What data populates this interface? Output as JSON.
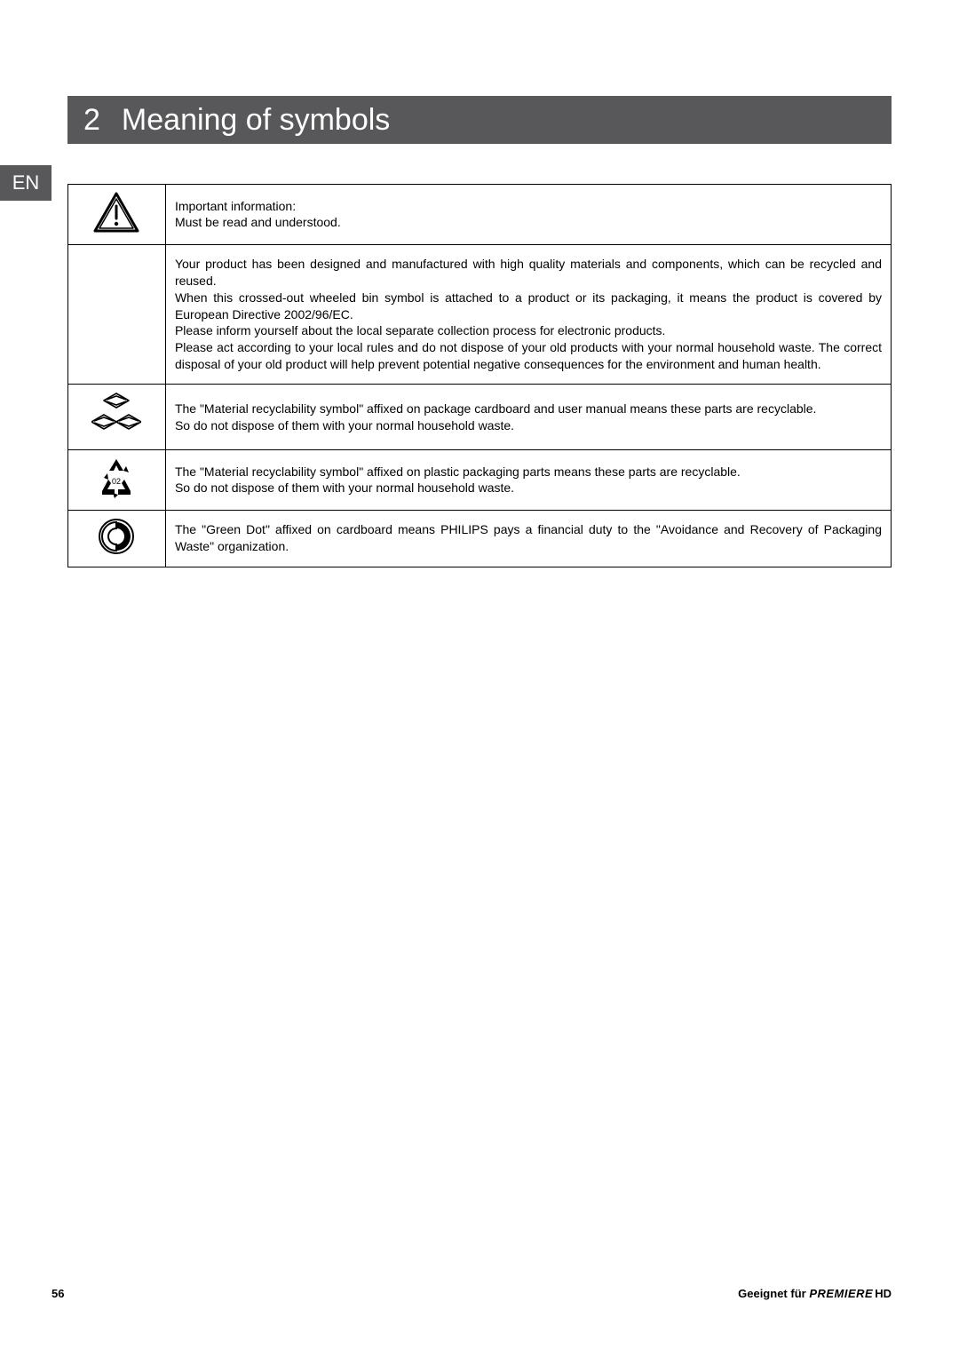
{
  "title": {
    "number": "2",
    "text": "Meaning of symbols"
  },
  "lang_tab": "EN",
  "rows": [
    {
      "icon": "warning",
      "text": "Important information:\nMust be read and understood."
    },
    {
      "icon": "none",
      "text": "Your product has been designed and manufactured with high quality materials and components, which can be recycled and reused.\nWhen this crossed-out wheeled bin symbol is attached to a product or its packaging, it means the product is covered by European Directive 2002/96/EC.\nPlease inform yourself about the local separate collection process for electronic products.\nPlease act according to your local rules and do not dispose of your old products with your normal household waste. The correct disposal of your old product will help prevent potential negative consequences for the environment and human health."
    },
    {
      "icon": "recycle-multi",
      "text": "The \"Material recyclability symbol\" affixed on package cardboard and user manual means these parts are recyclable.\nSo do not dispose of them with your normal household waste."
    },
    {
      "icon": "recycle-02",
      "text": "The \"Material recyclability symbol\" affixed on plastic packaging parts means these parts are recyclable.\nSo do not dispose of them with your normal household waste."
    },
    {
      "icon": "green-dot",
      "text": "The \"Green Dot\" affixed on cardboard means PHILIPS pays a financial duty to the \"Avoidance and Recovery of Packaging Waste\" organization."
    }
  ],
  "footer": {
    "page_number": "56",
    "right_prefix": "Geeignet für ",
    "brand": "PREMIERE",
    "brand_suffix": "HD"
  },
  "colors": {
    "header_bg": "#58585a",
    "text": "#000000",
    "page_bg": "#ffffff"
  }
}
